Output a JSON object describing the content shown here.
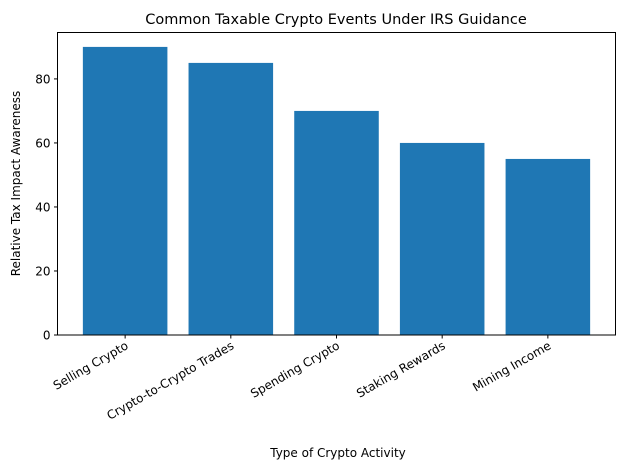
{
  "chart_data": {
    "type": "bar",
    "title": "Common Taxable Crypto Events Under IRS Guidance",
    "xlabel": "Type of Crypto Activity",
    "ylabel": "Relative Tax Impact Awareness",
    "categories": [
      "Selling Crypto",
      "Crypto-to-Crypto Trades",
      "Spending Crypto",
      "Staking Rewards",
      "Mining Income"
    ],
    "values": [
      90,
      85,
      70,
      60,
      55
    ],
    "ylim": [
      0,
      94.5
    ],
    "yticks": [
      0,
      20,
      40,
      60,
      80
    ],
    "grid": false,
    "legend": null,
    "bar_color": "#1f77b4",
    "xtick_rotation": -30
  }
}
